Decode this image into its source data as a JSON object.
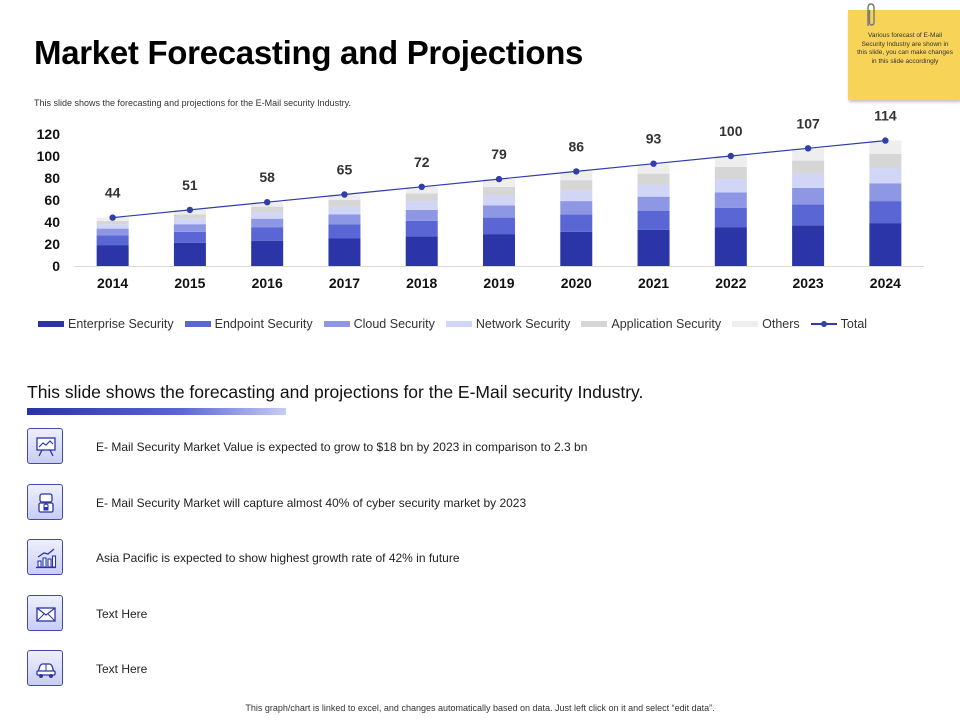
{
  "title": "Market Forecasting and Projections",
  "subtitle": "This slide shows the forecasting and projections for the E-Mail security Industry.",
  "sticky_note": "Various forecast of E-Mail Security Industry are shown in this slide, you can make changes in this slide accordingly",
  "chart_data": {
    "type": "bar",
    "stacked": true,
    "categories": [
      "2014",
      "2015",
      "2016",
      "2017",
      "2018",
      "2019",
      "2020",
      "2021",
      "2022",
      "2023",
      "2024"
    ],
    "ylim": [
      0,
      120
    ],
    "yticks": [
      0,
      20,
      40,
      60,
      80,
      100,
      120
    ],
    "grid": false,
    "legend_position": "bottom",
    "series": [
      {
        "name": "Enterprise Security",
        "color": "#2b35a8",
        "values": [
          19,
          21,
          23,
          25,
          27,
          29,
          31,
          33,
          35,
          37,
          39
        ]
      },
      {
        "name": "Endpoint Security",
        "color": "#5a66d4",
        "values": [
          9,
          10,
          12,
          13,
          14,
          15,
          16,
          17,
          18,
          19,
          20
        ]
      },
      {
        "name": "Cloud Security",
        "color": "#8d97e4",
        "values": [
          6,
          7,
          8,
          9,
          10,
          11,
          12,
          13,
          14,
          15,
          16
        ]
      },
      {
        "name": "Network Security",
        "color": "#d1d5f6",
        "values": [
          4,
          5,
          6,
          7,
          8,
          9,
          10,
          11,
          12,
          13,
          14
        ]
      },
      {
        "name": "Application Security",
        "color": "#d6d6d6",
        "values": [
          3,
          4,
          5,
          6,
          7,
          8,
          9,
          10,
          11,
          12,
          13
        ]
      },
      {
        "name": "Others",
        "color": "#eeeeee",
        "values": [
          3,
          4,
          4,
          5,
          6,
          7,
          8,
          9,
          10,
          11,
          12
        ]
      }
    ],
    "total": {
      "name": "Total",
      "color": "#2f3ea8",
      "values": [
        44,
        51,
        58,
        65,
        72,
        79,
        86,
        93,
        100,
        107,
        114
      ]
    }
  },
  "section_heading": "This slide shows the forecasting and projections for the E-Mail security Industry.",
  "points": [
    {
      "text": "E- Mail Security Market Value is expected to grow to $18 bn by 2023 in comparison to 2.3 bn",
      "icon": "presentation-board-icon"
    },
    {
      "text": "E- Mail Security Market will capture almost 40% of cyber security market by 2023",
      "icon": "security-lock-icon"
    },
    {
      "text": "Asia Pacific is expected to show highest growth rate of 42% in future",
      "icon": "growth-chart-icon"
    },
    {
      "text": "Text Here",
      "icon": "mail-icon"
    },
    {
      "text": "Text Here",
      "icon": "car-icon"
    }
  ],
  "footer": "This graph/chart is linked to excel, and changes automatically based on data. Just left click on it and select “edit data”."
}
